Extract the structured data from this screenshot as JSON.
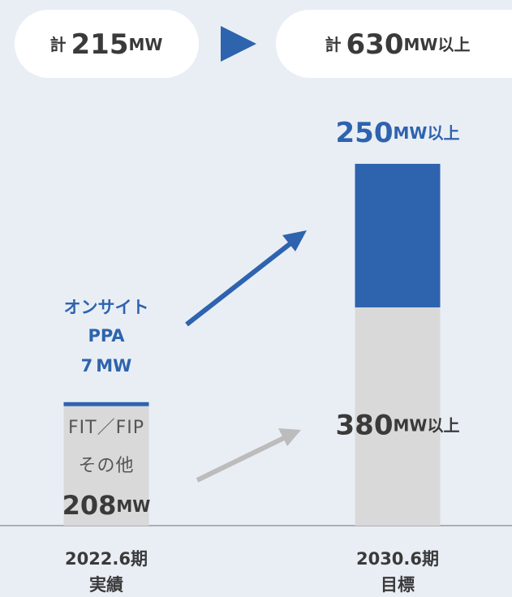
{
  "chart_data": {
    "type": "stacked-bar",
    "totals": [
      {
        "prefix": "計",
        "value": 215,
        "unit": "MW"
      },
      {
        "prefix": "計",
        "value": 630,
        "unit": "MW以上"
      }
    ],
    "categories": [
      "2022.6期",
      "2030.6期"
    ],
    "category_sublabels": [
      "実績",
      "目標"
    ],
    "series": [
      {
        "name_lines": [
          "FIT／FIP",
          "その他"
        ],
        "color": "#d9d9d9",
        "values": [
          208,
          380
        ],
        "units": [
          "MW",
          "MW以上"
        ]
      },
      {
        "name_lines": [
          "オンサイト",
          "PPA"
        ],
        "color": "#2e63ae",
        "values": [
          7,
          250
        ],
        "units": [
          "MW",
          "MW以上"
        ]
      }
    ]
  }
}
